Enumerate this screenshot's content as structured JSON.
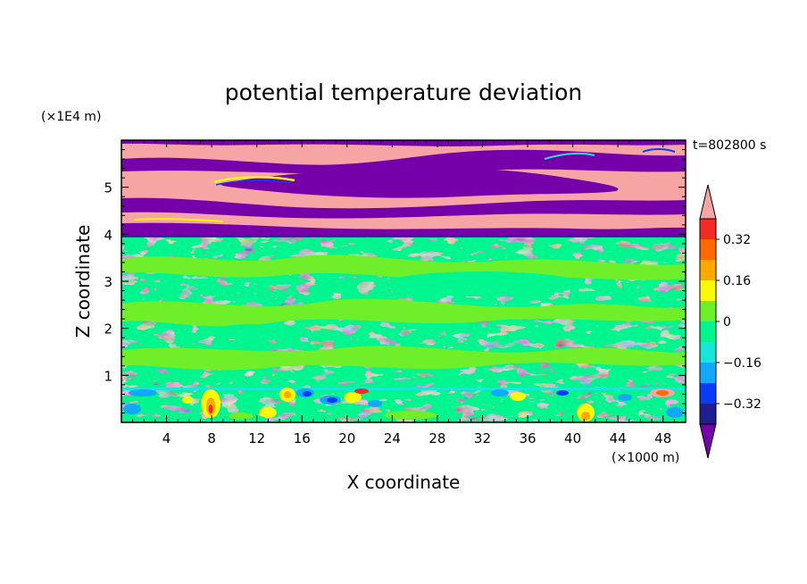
{
  "chart_data": {
    "type": "heatmap",
    "title": "potential temperature deviation",
    "xlabel": "X coordinate",
    "ylabel": "Z coordinate",
    "x_unit": "(×1000 m)",
    "y_unit": "(×1E4 m)",
    "time_label": "t=802800 s",
    "xlim": [
      0,
      50
    ],
    "ylim": [
      0,
      6
    ],
    "x_ticks": [
      4,
      8,
      12,
      16,
      20,
      24,
      28,
      32,
      36,
      40,
      44,
      48
    ],
    "y_ticks": [
      1,
      2,
      3,
      4,
      5
    ],
    "colorbar": {
      "levels": [
        -0.4,
        -0.32,
        -0.24,
        -0.16,
        -0.08,
        0,
        0.08,
        0.16,
        0.24,
        0.32,
        0.4
      ],
      "labels": [
        "0.32",
        "0.16",
        "0",
        "−0.16",
        "−0.32"
      ],
      "label_values": [
        0.32,
        0.16,
        0,
        -0.16,
        -0.32
      ],
      "colors_low_to_high": [
        "#1f1f8f",
        "#0b3cf5",
        "#11a8ff",
        "#18e6d6",
        "#00f58e",
        "#6fee2a",
        "#fbf80a",
        "#ffa800",
        "#ff6a00",
        "#f42a24"
      ],
      "under_color": "#7500aa",
      "over_color": "#f7a4a4",
      "extend": "both"
    },
    "regions": {
      "upper_band_z": [
        3.95,
        5.95
      ],
      "upper_colors": [
        "#7500aa",
        "#f7a4a4"
      ],
      "lower_dominant_colors": [
        "#00f58e",
        "#6fee2a"
      ]
    }
  }
}
